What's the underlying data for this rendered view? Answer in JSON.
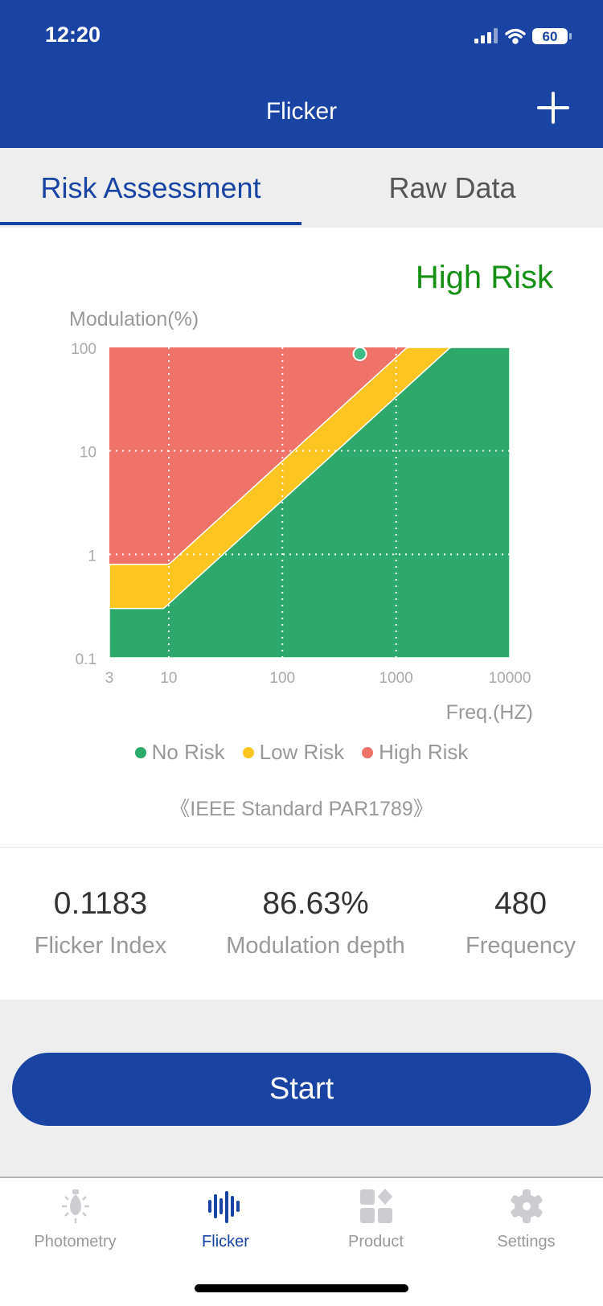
{
  "status_bar": {
    "time": "12:20",
    "battery": "60"
  },
  "header": {
    "title": "Flicker",
    "add_icon": "plus-icon"
  },
  "tabs": [
    {
      "label": "Risk Assessment",
      "active": true
    },
    {
      "label": "Raw Data",
      "active": false
    }
  ],
  "risk": {
    "label": "High Risk",
    "color": "#159015"
  },
  "chart_data": {
    "type": "area",
    "ylabel": "Modulation(%)",
    "xlabel": "Freq.(HZ)",
    "xscale": "log",
    "yscale": "log",
    "xlim": [
      3,
      10000
    ],
    "ylim": [
      0.1,
      100
    ],
    "x_ticks": [
      "3",
      "10",
      "100",
      "1000",
      "10000"
    ],
    "x_tick_values": [
      3,
      10,
      100,
      1000,
      10000
    ],
    "y_ticks": [
      "100",
      "10",
      "1",
      "0.1"
    ],
    "y_tick_values": [
      100,
      10,
      1,
      0.1
    ],
    "grid": true,
    "regions": [
      {
        "name": "No Risk",
        "color": "#2ea96c",
        "boundary": "M <= max(0.3, 0.0333*f)"
      },
      {
        "name": "Low Risk",
        "color": "#fdc521",
        "boundary": "M <= max(0.8, 0.08*f)"
      },
      {
        "name": "High Risk",
        "color": "#ef7369"
      }
    ],
    "low_flat": 0.3,
    "low_slope": 0.0333,
    "high_flat": 0.8,
    "high_slope": 0.08,
    "point": {
      "frequency": 480,
      "modulation": 86.63,
      "color": "#3dbe88"
    },
    "legend": [
      "No Risk",
      "Low Risk",
      "High Risk"
    ],
    "legend_position": "bottom"
  },
  "standard": "《IEEE Standard PAR1789》",
  "stats": [
    {
      "value": "0.1183",
      "label": "Flicker Index"
    },
    {
      "value": "86.63%",
      "label": "Modulation depth"
    },
    {
      "value": "480",
      "label": "Frequency"
    }
  ],
  "start_label": "Start",
  "bottom_nav": [
    {
      "label": "Photometry",
      "icon": "bulb-icon"
    },
    {
      "label": "Flicker",
      "icon": "waveform-icon",
      "active": true
    },
    {
      "label": "Product",
      "icon": "grid-icon"
    },
    {
      "label": "Settings",
      "icon": "gear-icon"
    }
  ]
}
